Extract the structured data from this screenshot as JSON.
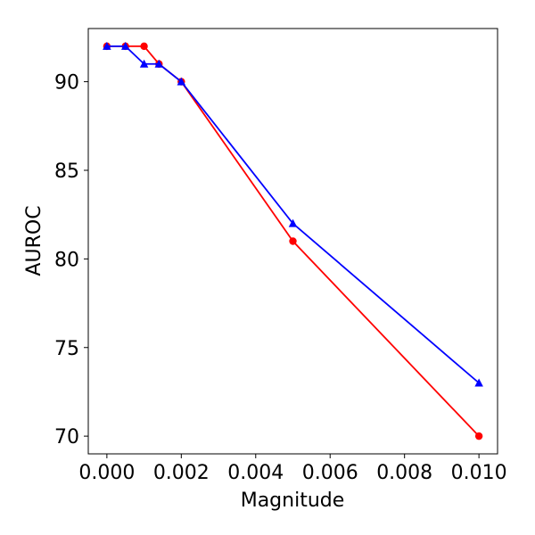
{
  "chart_data": {
    "type": "line",
    "title": "",
    "xlabel": "Magnitude",
    "ylabel": "AUROC",
    "xlim": [
      -0.0005,
      0.0105
    ],
    "ylim": [
      69,
      93
    ],
    "xticks": [
      0.0,
      0.002,
      0.004,
      0.006,
      0.008,
      0.01
    ],
    "xtick_labels": [
      "0.000",
      "0.002",
      "0.004",
      "0.006",
      "0.008",
      "0.010"
    ],
    "yticks": [
      70,
      75,
      80,
      85,
      90
    ],
    "ytick_labels": [
      "70",
      "75",
      "80",
      "85",
      "90"
    ],
    "grid": false,
    "legend": null,
    "series": [
      {
        "color": "#ff0000",
        "marker": "circle",
        "x": [
          0.0,
          0.0005,
          0.001,
          0.0014,
          0.002,
          0.005,
          0.01
        ],
        "y": [
          92,
          92,
          92,
          91,
          90,
          81,
          70
        ]
      },
      {
        "color": "#0000ff",
        "marker": "triangle",
        "x": [
          0.0,
          0.0005,
          0.001,
          0.0014,
          0.002,
          0.005,
          0.01
        ],
        "y": [
          92,
          92,
          91,
          91,
          90,
          82,
          73
        ]
      }
    ]
  }
}
